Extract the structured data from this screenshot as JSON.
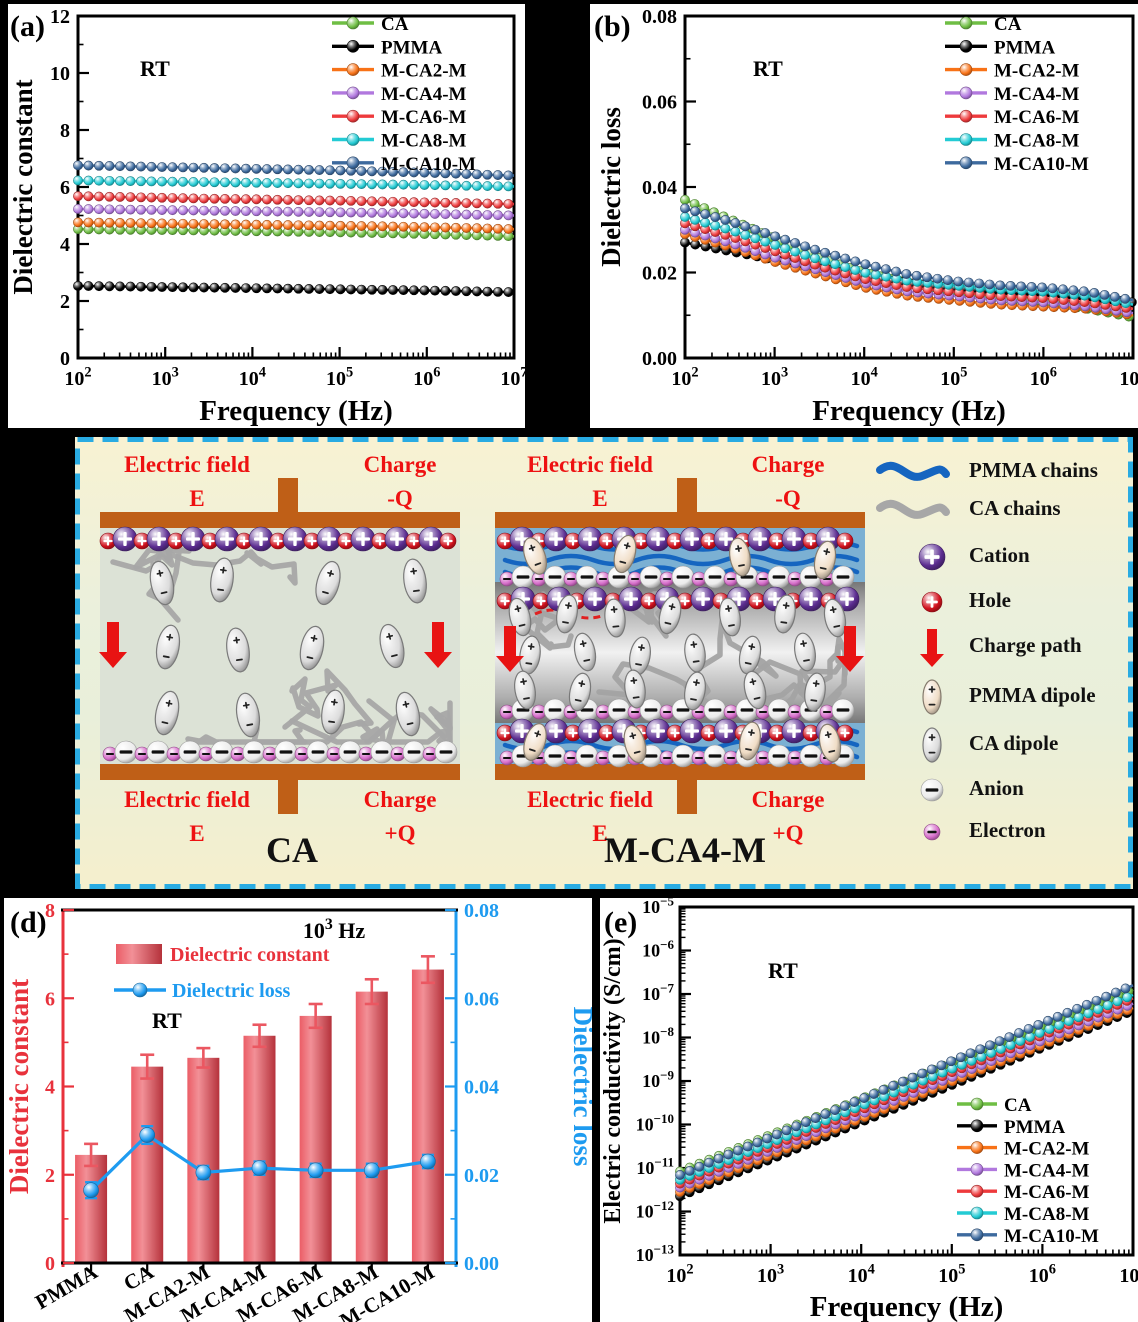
{
  "figure": {
    "panel_labels": {
      "a": "(a)",
      "b": "(b)",
      "d": "(d)",
      "e": "(e)"
    },
    "series": [
      {
        "label": "CA",
        "color": "#6fbe44"
      },
      {
        "label": "PMMA",
        "color": "#000000"
      },
      {
        "label": "M-CA2-M",
        "color": "#f87217"
      },
      {
        "label": "M-CA4-M",
        "color": "#b178de"
      },
      {
        "label": "M-CA6-M",
        "color": "#ee3a3c"
      },
      {
        "label": "M-CA8-M",
        "color": "#23cbd4"
      },
      {
        "label": "M-CA10-M",
        "color": "#3d6a9e"
      }
    ]
  },
  "chart_data": [
    {
      "id": "a",
      "type": "line",
      "annotation": "RT",
      "xlabel": "Frequency (Hz)",
      "ylabel": "Dielectric constant",
      "x_scale": "log",
      "xlim_log10": [
        2,
        7
      ],
      "ylim": [
        0,
        12
      ],
      "y_major_step": 2,
      "y_minor_step": 1,
      "x_log10": [
        2,
        2.5,
        3,
        3.5,
        4,
        4.5,
        5,
        5.5,
        6,
        6.5,
        7
      ],
      "legend": [
        "CA",
        "PMMA",
        "M-CA2-M",
        "M-CA4-M",
        "M-CA6-M",
        "M-CA8-M",
        "M-CA10-M"
      ],
      "legend_position": "top-right",
      "series": [
        {
          "name": "CA",
          "values": [
            4.52,
            4.5,
            4.49,
            4.47,
            4.45,
            4.43,
            4.41,
            4.38,
            4.35,
            4.31,
            4.27
          ]
        },
        {
          "name": "PMMA",
          "values": [
            2.53,
            2.51,
            2.49,
            2.47,
            2.45,
            2.43,
            2.41,
            2.39,
            2.37,
            2.34,
            2.31
          ]
        },
        {
          "name": "M-CA2-M",
          "values": [
            4.76,
            4.74,
            4.72,
            4.7,
            4.68,
            4.66,
            4.64,
            4.62,
            4.59,
            4.56,
            4.52
          ]
        },
        {
          "name": "M-CA4-M",
          "values": [
            5.23,
            5.21,
            5.19,
            5.17,
            5.15,
            5.13,
            5.11,
            5.09,
            5.06,
            5.03,
            5.0
          ]
        },
        {
          "name": "M-CA6-M",
          "values": [
            5.68,
            5.65,
            5.62,
            5.59,
            5.57,
            5.54,
            5.52,
            5.49,
            5.46,
            5.43,
            5.4
          ]
        },
        {
          "name": "M-CA8-M",
          "values": [
            6.23,
            6.21,
            6.19,
            6.17,
            6.15,
            6.13,
            6.11,
            6.09,
            6.07,
            6.04,
            6.02
          ]
        },
        {
          "name": "M-CA10-M",
          "values": [
            6.76,
            6.73,
            6.7,
            6.67,
            6.64,
            6.61,
            6.58,
            6.54,
            6.5,
            6.45,
            6.4
          ]
        }
      ]
    },
    {
      "id": "b",
      "type": "line",
      "annotation": "RT",
      "xlabel": "Frequency (Hz)",
      "ylabel": "Dielectric loss",
      "x_scale": "log",
      "xlim_log10": [
        2,
        7
      ],
      "ylim": [
        0,
        0.08
      ],
      "y_major_step": 0.02,
      "y_minor_step": 0.01,
      "x_log10": [
        2,
        2.5,
        3,
        3.5,
        4,
        4.5,
        5,
        5.5,
        6,
        6.5,
        7
      ],
      "legend": [
        "CA",
        "PMMA",
        "M-CA2-M",
        "M-CA4-M",
        "M-CA6-M",
        "M-CA8-M",
        "M-CA10-M"
      ],
      "legend_position": "top-right",
      "series": [
        {
          "name": "CA",
          "values": [
            0.037,
            0.0325,
            0.028,
            0.0235,
            0.02,
            0.0175,
            0.0155,
            0.014,
            0.013,
            0.0115,
            0.0095
          ]
        },
        {
          "name": "PMMA",
          "values": [
            0.027,
            0.025,
            0.023,
            0.021,
            0.019,
            0.0175,
            0.0165,
            0.016,
            0.0155,
            0.0145,
            0.013
          ]
        },
        {
          "name": "M-CA2-M",
          "values": [
            0.029,
            0.026,
            0.0225,
            0.0195,
            0.0165,
            0.0145,
            0.0135,
            0.0125,
            0.012,
            0.0115,
            0.01
          ]
        },
        {
          "name": "M-CA4-M",
          "values": [
            0.03,
            0.027,
            0.0235,
            0.0205,
            0.0175,
            0.0155,
            0.0145,
            0.0135,
            0.013,
            0.012,
            0.0105
          ]
        },
        {
          "name": "M-CA6-M",
          "values": [
            0.0315,
            0.0285,
            0.025,
            0.0215,
            0.0185,
            0.0165,
            0.0155,
            0.0145,
            0.014,
            0.013,
            0.0115
          ]
        },
        {
          "name": "M-CA8-M",
          "values": [
            0.033,
            0.03,
            0.0265,
            0.023,
            0.02,
            0.018,
            0.017,
            0.016,
            0.0155,
            0.0145,
            0.0125
          ]
        },
        {
          "name": "M-CA10-M",
          "values": [
            0.035,
            0.032,
            0.0285,
            0.025,
            0.022,
            0.0195,
            0.018,
            0.017,
            0.0165,
            0.0155,
            0.0135
          ]
        }
      ]
    },
    {
      "id": "d",
      "type": "bar+line",
      "annotation": "RT",
      "frequency_annotation": {
        "base": "10",
        "exp": "3",
        "unit": " Hz"
      },
      "categories": [
        "PMMA",
        "CA",
        "M-CA2-M",
        "M-CA4-M",
        "M-CA6-M",
        "M-CA8-M",
        "M-CA10-M"
      ],
      "bars": {
        "label": "Dielectric constant",
        "axis_label": "Dielectric constant",
        "color": "#e8404b",
        "axis_color": "#e8323c",
        "ylim": [
          0,
          8
        ],
        "y_major_step": 2,
        "y_minor_step": 1,
        "values": [
          2.45,
          4.45,
          4.65,
          5.15,
          5.6,
          6.15,
          6.65
        ],
        "errors": [
          0.25,
          0.27,
          0.22,
          0.25,
          0.27,
          0.28,
          0.3
        ]
      },
      "line": {
        "label": "Dielectric loss",
        "axis_label": "Dielectric loss",
        "color": "#1e9bf0",
        "axis_color": "#1e9bf0",
        "ylim": [
          0,
          0.08
        ],
        "y_major_step": 0.02,
        "y_minor_step": 0.01,
        "values": [
          0.0165,
          0.029,
          0.0205,
          0.0215,
          0.021,
          0.021,
          0.023
        ],
        "errors": [
          0.0018,
          0.002,
          0.0015,
          0.0015,
          0.0015,
          0.0015,
          0.0015
        ]
      }
    },
    {
      "id": "e",
      "type": "line",
      "annotation": "RT",
      "xlabel": "Frequency (Hz)",
      "ylabel": "Electric conductivity (S/cm)",
      "x_scale": "log",
      "y_scale": "log",
      "xlim_log10": [
        2,
        7
      ],
      "ylim_log10": [
        -13,
        -5
      ],
      "x_log10": [
        2,
        2.5,
        3,
        3.5,
        4,
        4.5,
        5,
        5.5,
        6,
        6.5,
        7
      ],
      "legend": [
        "CA",
        "PMMA",
        "M-CA2-M",
        "M-CA4-M",
        "M-CA6-M",
        "M-CA8-M",
        "M-CA10-M"
      ],
      "legend_position": "center-right",
      "series": [
        {
          "name": "CA",
          "log10_values": [
            -11.08,
            -10.66,
            -10.24,
            -9.83,
            -9.41,
            -8.99,
            -8.57,
            -8.15,
            -7.74,
            -7.32,
            -6.9
          ]
        },
        {
          "name": "PMMA",
          "log10_values": [
            -11.65,
            -11.22,
            -10.8,
            -10.37,
            -9.94,
            -9.52,
            -9.09,
            -8.66,
            -8.23,
            -7.81,
            -7.38
          ]
        },
        {
          "name": "M-CA2-M",
          "log10_values": [
            -11.55,
            -11.13,
            -10.7,
            -10.28,
            -9.86,
            -9.44,
            -9.01,
            -8.59,
            -8.17,
            -7.74,
            -7.32
          ]
        },
        {
          "name": "M-CA4-M",
          "log10_values": [
            -11.45,
            -11.03,
            -10.6,
            -10.18,
            -9.76,
            -9.34,
            -8.91,
            -8.49,
            -8.07,
            -7.64,
            -7.22
          ]
        },
        {
          "name": "M-CA6-M",
          "log10_values": [
            -11.36,
            -10.93,
            -10.51,
            -10.08,
            -9.66,
            -9.23,
            -8.8,
            -8.38,
            -7.95,
            -7.53,
            -7.1
          ]
        },
        {
          "name": "M-CA8-M",
          "log10_values": [
            -11.27,
            -10.85,
            -10.42,
            -10.0,
            -9.57,
            -9.15,
            -8.72,
            -8.3,
            -7.87,
            -7.45,
            -7.02
          ]
        },
        {
          "name": "M-CA10-M",
          "log10_values": [
            -11.16,
            -10.72,
            -10.29,
            -9.85,
            -9.42,
            -8.98,
            -8.54,
            -8.11,
            -7.67,
            -7.24,
            -6.8
          ]
        }
      ]
    }
  ],
  "schematic": {
    "border_color": "#29abe2",
    "label_color": "#ee1111",
    "electrode_color": "#bf5f17",
    "ca_fill": "#dce2d6",
    "pmma_fill": "#7bb0d3",
    "pmma_chain_color": "#1565c0",
    "ca_chain_color": "#a7a7a7",
    "devices": [
      {
        "title": "CA",
        "structure": "single",
        "labels": {
          "top_left": [
            "Electric field",
            "E"
          ],
          "top_right": [
            "Charge",
            "-Q"
          ],
          "bottom_left": [
            "Electric field",
            "E"
          ],
          "bottom_right": [
            "Charge",
            "+Q"
          ]
        }
      },
      {
        "title": "M-CA4-M",
        "structure": "layered",
        "labels": {
          "top_left": [
            "Electric field",
            "E"
          ],
          "top_right": [
            "Charge",
            "-Q"
          ],
          "bottom_left": [
            "Electric field",
            "E"
          ],
          "bottom_right": [
            "Charge",
            "+Q"
          ]
        }
      }
    ],
    "legend": [
      {
        "type": "chain",
        "label": "PMMA chains",
        "color": "#1565c0"
      },
      {
        "type": "chain",
        "label": "CA chains",
        "color": "#a7a7a7"
      },
      {
        "type": "sphere",
        "label": "Cation",
        "color": "#5c2d91",
        "sign": "+",
        "sign_color": "#ffffff",
        "r": 13
      },
      {
        "type": "sphere",
        "label": "Hole",
        "color": "#d2111d",
        "sign": "+",
        "sign_color": "#ffffff",
        "r": 10
      },
      {
        "type": "arrow",
        "label": "Charge path",
        "color": "#e81313"
      },
      {
        "type": "dipole",
        "label": "PMMA dipole",
        "color": "#f0ddc6"
      },
      {
        "type": "dipole",
        "label": "CA dipole",
        "color": "#dcdcdc"
      },
      {
        "type": "sphere",
        "label": "Anion",
        "color": "#ececec",
        "sign": "−",
        "sign_color": "#111111",
        "r": 11
      },
      {
        "type": "sphere",
        "label": "Electron",
        "color": "#d76ecb",
        "sign": "−",
        "sign_color": "#111111",
        "r": 8
      }
    ]
  }
}
